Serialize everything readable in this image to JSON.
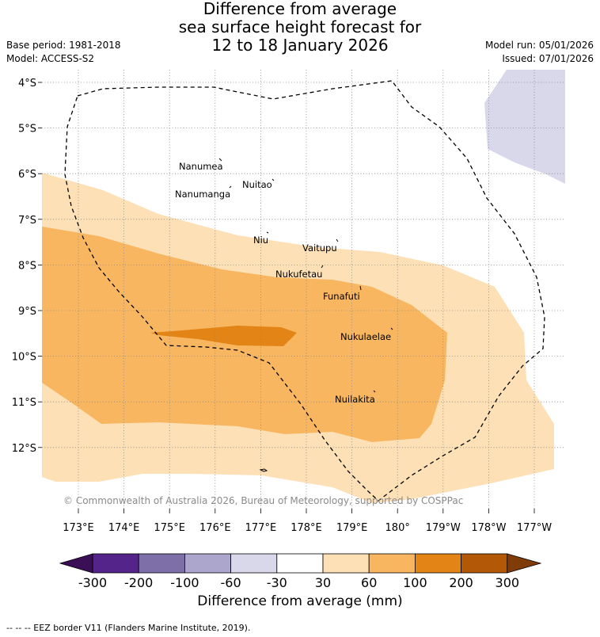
{
  "title": {
    "line1": "Difference from average",
    "line2": "sea surface height forecast for",
    "line3": "12 to 18 January 2026"
  },
  "meta": {
    "base_period": "Base period: 1981-2018",
    "model": "Model: ACCESS-S2",
    "model_run": "Model run: 05/01/2026",
    "issued": "Issued: 07/01/2026"
  },
  "map": {
    "lat_labels": [
      "4°S",
      "5°S",
      "6°S",
      "7°S",
      "8°S",
      "9°S",
      "10°S",
      "11°S",
      "12°S"
    ],
    "lon_labels": [
      "173°E",
      "174°E",
      "175°E",
      "176°E",
      "177°E",
      "178°E",
      "179°E",
      "180°",
      "179°W",
      "178°W",
      "177°W"
    ],
    "islands": [
      {
        "name": "Nanumea"
      },
      {
        "name": "Nanumanga"
      },
      {
        "name": "Nuitao"
      },
      {
        "name": "Niu"
      },
      {
        "name": "Vaitupu"
      },
      {
        "name": "Nukufetau"
      },
      {
        "name": "Funafuti"
      },
      {
        "name": "Nukulaelae"
      },
      {
        "name": "Nuilakita"
      }
    ],
    "copyright": "© Commonwealth of Australia 2026, Bureau of Meteorology, supported by COSPPac"
  },
  "colorbar": {
    "title": "Difference from average (mm)",
    "tick_labels": [
      "-300",
      "-200",
      "-100",
      "-60",
      "-30",
      "30",
      "60",
      "100",
      "200",
      "300"
    ],
    "colors": {
      "neg_ext": "#3b0f55",
      "neg300": "#54248a",
      "neg200": "#7e6fa9",
      "neg100": "#ada6cc",
      "neg60": "#d8d8ea",
      "neutral": "#ffffff",
      "pos30": "#fde0b5",
      "pos60": "#f9b661",
      "pos100": "#e28416",
      "pos200": "#b35806",
      "pos_ext": "#7f3b08"
    }
  },
  "footer": "--  --  -- EEZ border V11 (Flanders Marine Institute, 2019)."
}
